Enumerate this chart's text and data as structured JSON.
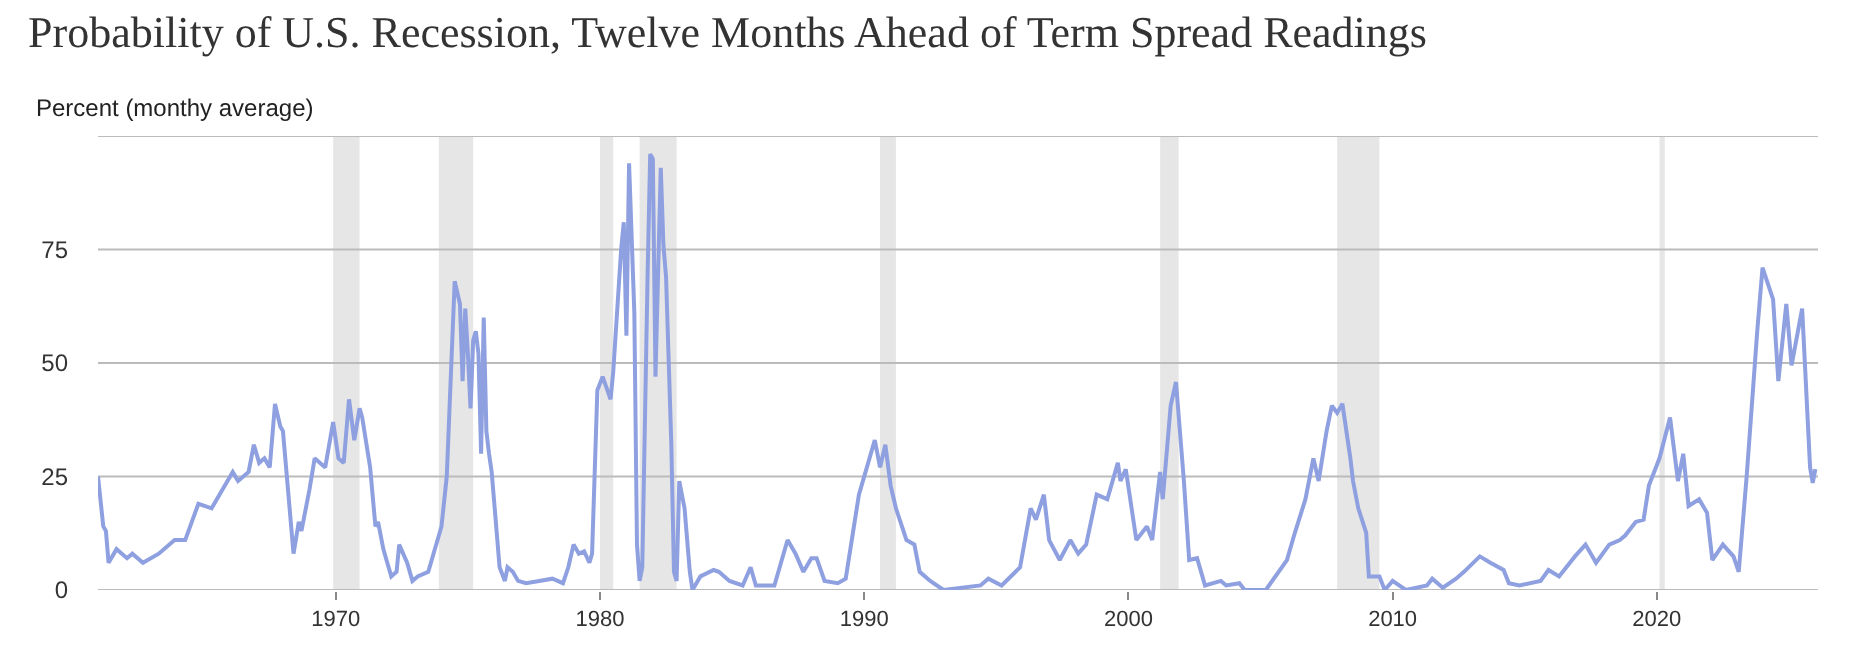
{
  "chart_data": {
    "type": "line",
    "title": "Probability of U.S. Recession, Twelve Months Ahead of Term Spread Readings",
    "ylabel": "Percent (monthy average)",
    "x": [
      1961.0,
      1961.2,
      1961.3,
      1961.4,
      1961.7,
      1962.1,
      1962.3,
      1962.7,
      1963.3,
      1963.9,
      1964.3,
      1964.8,
      1965.3,
      1966.0,
      1966.1,
      1966.3,
      1966.7,
      1966.9,
      1967.1,
      1967.3,
      1967.5,
      1967.7,
      1967.9,
      1968.0,
      1968.4,
      1968.6,
      1968.7,
      1969.0,
      1969.2,
      1969.6,
      1969.9,
      1970.1,
      1970.3,
      1970.5,
      1970.7,
      1970.9,
      1971.0,
      1971.3,
      1971.5,
      1971.6,
      1971.8,
      1971.9,
      1972.1,
      1972.3,
      1972.4,
      1972.7,
      1972.9,
      1973.1,
      1973.5,
      1974.0,
      1974.2,
      1974.5,
      1974.7,
      1974.8,
      1974.9,
      1975.0,
      1975.1,
      1975.2,
      1975.3,
      1975.4,
      1975.5,
      1975.6,
      1975.7,
      1975.8,
      1975.9,
      1976.2,
      1976.4,
      1976.5,
      1976.7,
      1976.9,
      1977.2,
      1977.7,
      1978.2,
      1978.6,
      1978.8,
      1979.0,
      1979.2,
      1979.4,
      1979.6,
      1979.7,
      1979.9,
      1980.1,
      1980.4,
      1980.5,
      1980.8,
      1980.9,
      1981.0,
      1981.1,
      1981.3,
      1981.4,
      1981.5,
      1981.6,
      1981.8,
      1981.9,
      1982.0,
      1982.1,
      1982.3,
      1982.4,
      1982.5,
      1982.7,
      1982.8,
      1982.9,
      1983.0,
      1983.2,
      1983.4,
      1983.5,
      1983.8,
      1984.3,
      1984.5,
      1984.9,
      1985.4,
      1985.7,
      1985.9,
      1986.6,
      1987.1,
      1987.2,
      1987.4,
      1987.7,
      1988.0,
      1988.2,
      1988.5,
      1989.0,
      1989.3,
      1989.8,
      1990.4,
      1990.6,
      1990.8,
      1991.0,
      1991.2,
      1991.6,
      1991.9,
      1992.1,
      1992.5,
      1993.0,
      1994.4,
      1994.7,
      1995.2,
      1995.9,
      1996.3,
      1996.5,
      1996.8,
      1997.0,
      1997.4,
      1997.8,
      1998.1,
      1998.4,
      1998.8,
      1999.2,
      1999.6,
      1999.7,
      1999.9,
      2000.3,
      2000.7,
      2000.9,
      2001.2,
      2001.3,
      2001.6,
      2001.8,
      2002.1,
      2002.3,
      2002.6,
      2002.9,
      2003.5,
      2003.7,
      2004.2,
      2004.4,
      2005.2,
      2006.0,
      2006.3,
      2006.7,
      2007.0,
      2007.2,
      2007.5,
      2007.7,
      2007.9,
      2008.1,
      2008.4,
      2008.5,
      2008.7,
      2009.0,
      2009.1,
      2009.5,
      2009.7,
      2010.0,
      2010.5,
      2011.3,
      2011.5,
      2011.9,
      2012.4,
      2012.7,
      2013.3,
      2013.7,
      2014.2,
      2014.4,
      2014.8,
      2015.6,
      2015.9,
      2016.3,
      2016.9,
      2017.3,
      2017.7,
      2018.2,
      2018.6,
      2018.8,
      2019.2,
      2019.5,
      2019.7,
      2020.1,
      2020.5,
      2020.8,
      2021.0,
      2021.2,
      2021.6,
      2021.9,
      2022.1,
      2022.5,
      2022.9,
      2023.1,
      2023.4,
      2023.8,
      2024.0,
      2024.4,
      2024.6,
      2024.9,
      2025.1,
      2025.5,
      2025.8,
      2025.9,
      2026.0
    ],
    "series": [
      {
        "color": "#8fa0e0",
        "values": [
          25,
          14,
          13,
          6,
          9,
          7,
          8,
          6,
          8,
          11,
          11,
          19,
          18,
          25,
          26,
          24,
          26,
          32,
          28,
          29,
          27,
          41,
          36,
          35,
          8,
          15,
          13,
          22,
          29,
          27,
          37,
          29,
          28,
          42,
          33,
          40,
          38,
          27,
          14,
          15,
          9,
          7,
          3,
          4,
          10,
          6,
          2,
          3,
          4,
          14,
          25,
          68,
          63,
          46,
          62,
          52,
          40,
          55,
          57,
          52,
          30,
          60,
          35,
          30,
          26,
          5,
          2,
          5,
          4,
          2,
          1.5,
          2,
          2.5,
          1.5,
          5,
          10,
          8,
          8.5,
          6,
          8,
          44,
          47,
          42,
          48,
          75,
          81,
          56,
          94,
          61,
          10,
          2,
          5,
          69,
          96,
          95,
          47,
          93,
          76,
          69,
          32,
          4,
          2,
          24,
          18,
          4,
          0,
          3,
          4.4,
          4,
          2,
          1,
          5,
          1,
          1,
          11,
          10,
          8,
          4,
          7,
          7,
          2,
          1.5,
          2.5,
          21,
          33,
          27,
          32,
          23,
          18,
          11,
          10,
          4,
          2,
          0,
          1,
          2.5,
          1,
          5,
          18,
          15.5,
          21,
          11,
          6.6,
          11,
          8,
          10,
          21,
          20,
          28,
          24,
          26.6,
          11,
          14,
          11,
          26,
          20,
          40.6,
          45.8,
          24,
          6.6,
          7,
          1,
          2,
          1,
          1.5,
          0,
          0,
          6.6,
          12.6,
          20,
          29,
          24,
          35,
          40.6,
          39,
          41,
          29,
          24,
          18,
          12.6,
          3,
          3,
          0,
          2,
          0,
          1,
          2.5,
          0.5,
          2.5,
          4,
          7.4,
          6,
          4.4,
          1.5,
          1,
          2,
          4.4,
          3,
          7.4,
          10,
          6,
          10,
          11,
          12,
          15,
          15.5,
          23,
          29,
          38,
          24,
          30,
          18.5,
          20,
          17,
          6.6,
          10,
          7.4,
          4,
          25,
          57,
          71,
          64,
          46,
          63,
          49.5,
          62,
          27,
          23.6,
          26.6
        ]
      }
    ],
    "xlim": [
      1961,
      2026.1
    ],
    "xticks": [
      1970,
      1980,
      1990,
      2000,
      2010,
      2020
    ],
    "ylim": [
      0,
      100
    ],
    "yticks": [
      0,
      25,
      50,
      75,
      {
        "value": 100,
        "label": null
      }
    ],
    "grid": "y",
    "marker": "none",
    "line_style": "solid",
    "bands": [
      {
        "axis": "x",
        "from": 1969.9,
        "to": 1970.9,
        "color": "#e6e6e6"
      },
      {
        "axis": "x",
        "from": 1973.9,
        "to": 1975.2,
        "color": "#e6e6e6"
      },
      {
        "axis": "x",
        "from": 1980.0,
        "to": 1980.5,
        "color": "#e6e6e6"
      },
      {
        "axis": "x",
        "from": 1981.5,
        "to": 1982.9,
        "color": "#e6e6e6"
      },
      {
        "axis": "x",
        "from": 1990.6,
        "to": 1991.2,
        "color": "#e6e6e6"
      },
      {
        "axis": "x",
        "from": 2001.2,
        "to": 2001.9,
        "color": "#e6e6e6"
      },
      {
        "axis": "x",
        "from": 2007.9,
        "to": 2009.5,
        "color": "#e6e6e6"
      },
      {
        "axis": "x",
        "from": 2020.1,
        "to": 2020.3,
        "color": "#e6e6e6"
      }
    ]
  }
}
